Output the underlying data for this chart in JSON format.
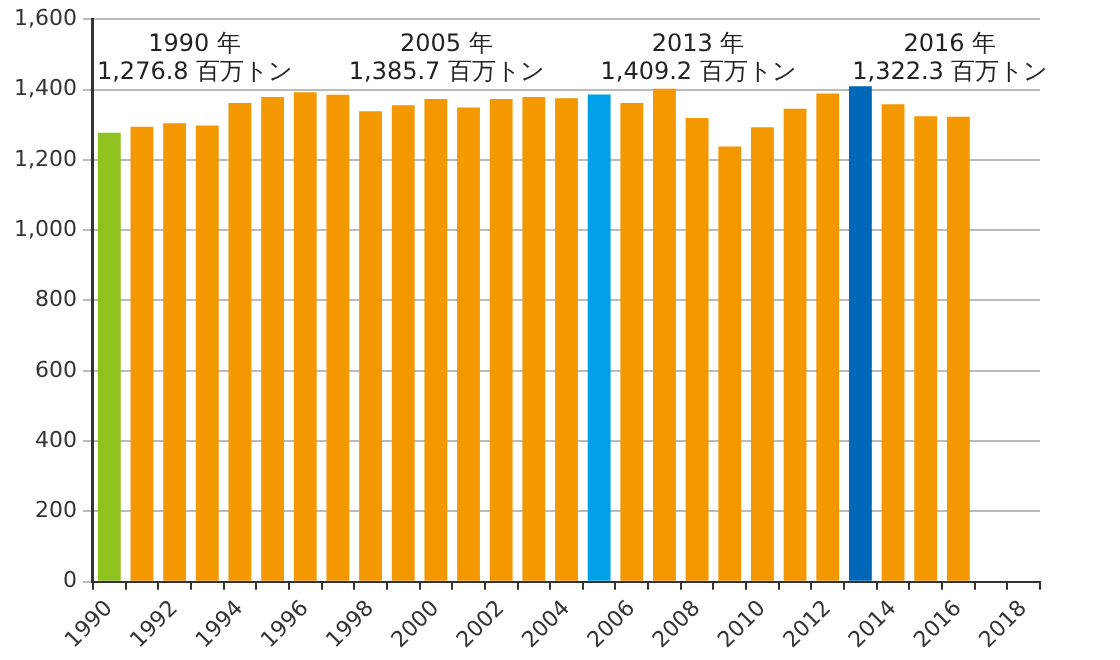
{
  "chart_data": {
    "type": "bar",
    "categories": [
      "1990",
      null,
      "1992",
      null,
      "1994",
      null,
      "1996",
      null,
      "1998",
      null,
      "2000",
      null,
      "2002",
      null,
      "2004",
      null,
      "2006",
      null,
      "2008",
      null,
      "2010",
      null,
      "2012",
      null,
      "2014",
      null,
      "2016",
      null,
      "2018"
    ],
    "values": [
      1276.8,
      1294,
      1304,
      1298,
      1362,
      1379,
      1392,
      1385,
      1338,
      1355,
      1373,
      1349,
      1373,
      1379,
      1375,
      1385.7,
      1362,
      1402,
      1319,
      1238,
      1293,
      1345,
      1389,
      1409.2,
      1358,
      1324,
      1322.3,
      null,
      null
    ],
    "colors": [
      "#8dc21f",
      "#f39800",
      "#f39800",
      "#f39800",
      "#f39800",
      "#f39800",
      "#f39800",
      "#f39800",
      "#f39800",
      "#f39800",
      "#f39800",
      "#f39800",
      "#f39800",
      "#f39800",
      "#f39800",
      "#00a0e9",
      "#f39800",
      "#f39800",
      "#f39800",
      "#f39800",
      "#f39800",
      "#f39800",
      "#f39800",
      "#0068b7",
      "#f39800",
      "#f39800",
      "#f39800",
      "#f39800",
      "#f39800"
    ],
    "ylim": [
      0,
      1600
    ],
    "yticks": [
      0,
      {
        "value": 200,
        "label": "200"
      },
      {
        "value": 400,
        "label": "400"
      },
      {
        "value": 600,
        "label": "600"
      },
      {
        "value": 800,
        "label": "800"
      },
      {
        "value": 1000,
        "label": "1,000"
      },
      {
        "value": 1200,
        "label": "1,200"
      },
      {
        "value": 1400,
        "label": "1,400"
      },
      {
        "value": 1600,
        "label": "1,600"
      }
    ],
    "grid": "y",
    "annotations": [
      "1990 年\n1,276.8 百万トン",
      "2005 年\n1,385.7 百万トン",
      "2013 年\n1,409.2 百万トン",
      "2016 年\n1,322.3 百万トン"
    ]
  }
}
